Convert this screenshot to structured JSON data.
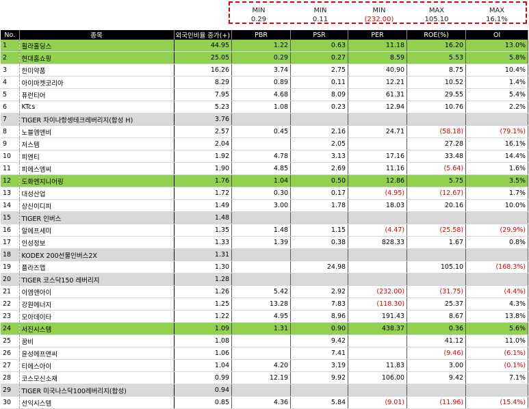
{
  "minmax": [
    {
      "label": "MIN",
      "value": "0.29",
      "neg": false
    },
    {
      "label": "MIN",
      "value": "0.11",
      "neg": false
    },
    {
      "label": "MIN",
      "value": "(232.00)",
      "neg": true
    },
    {
      "label": "MAX",
      "value": "105.10",
      "neg": false
    },
    {
      "label": "MAX",
      "value": "16.1%",
      "neg": false
    }
  ],
  "headers": [
    "No.",
    "종목",
    "외국인비율 증가(+)",
    "PBR",
    "PSR",
    "PER",
    "ROE(%)",
    "OI"
  ],
  "rows": [
    {
      "no": "1",
      "name": "휠라홀딩스",
      "foreign": "44.95",
      "pbr": "1.22",
      "psr": "0.63",
      "per": "11.18",
      "roe": "16.20",
      "oi": "13.0%",
      "style": "green"
    },
    {
      "no": "2",
      "name": "현대홈쇼핑",
      "foreign": "25.05",
      "pbr": "0.29",
      "psr": "0.27",
      "per": "8.59",
      "roe": "5.53",
      "oi": "5.8%",
      "style": "green"
    },
    {
      "no": "3",
      "name": "한미약품",
      "foreign": "16.26",
      "pbr": "3.74",
      "psr": "2.75",
      "per": "40.90",
      "roe": "8.75",
      "oi": "10.4%",
      "style": ""
    },
    {
      "no": "4",
      "name": "아이마켓코리아",
      "foreign": "8.29",
      "pbr": "0.89",
      "psr": "0.11",
      "per": "12.21",
      "roe": "10.52",
      "oi": "1.4%",
      "style": ""
    },
    {
      "no": "5",
      "name": "퓨런티어",
      "foreign": "7.95",
      "pbr": "4.68",
      "psr": "8.09",
      "per": "61.31",
      "roe": "29.55",
      "oi": "5.4%",
      "style": ""
    },
    {
      "no": "6",
      "name": "KTcs",
      "foreign": "5.23",
      "pbr": "1.08",
      "psr": "0.23",
      "per": "12.94",
      "roe": "10.76",
      "oi": "2.2%",
      "style": ""
    },
    {
      "no": "7",
      "name": "TIGER 차이나항셍테크레버리지(합성 H)",
      "foreign": "3.76",
      "pbr": "",
      "psr": "",
      "per": "",
      "roe": "",
      "oi": "",
      "style": "gray"
    },
    {
      "no": "8",
      "name": "노블엠앤비",
      "foreign": "2.57",
      "pbr": "0.45",
      "psr": "2.16",
      "per": "24.71",
      "roe": "(58.18)",
      "oi": "(79.1%)",
      "style": ""
    },
    {
      "no": "9",
      "name": "저스템",
      "foreign": "2.04",
      "pbr": "",
      "psr": "2.05",
      "per": "",
      "roe": "27.28",
      "oi": "16.1%",
      "style": ""
    },
    {
      "no": "10",
      "name": "피엔티",
      "foreign": "1.92",
      "pbr": "4.78",
      "psr": "3.13",
      "per": "17.16",
      "roe": "33.48",
      "oi": "14.4%",
      "style": ""
    },
    {
      "no": "11",
      "name": "피에스엠씨",
      "foreign": "1.90",
      "pbr": "4.85",
      "psr": "2.69",
      "per": "11.16",
      "roe": "(5.64)",
      "oi": "1.6%",
      "style": ""
    },
    {
      "no": "12",
      "name": "도화엔지니어링",
      "foreign": "1.76",
      "pbr": "1.04",
      "psr": "0.50",
      "per": "12.86",
      "roe": "5.75",
      "oi": "3.5%",
      "style": "green"
    },
    {
      "no": "13",
      "name": "대성산업",
      "foreign": "1.72",
      "pbr": "0.30",
      "psr": "0.17",
      "per": "(4.95)",
      "roe": "(12.67)",
      "oi": "1.7%",
      "style": ""
    },
    {
      "no": "14",
      "name": "상신이디피",
      "foreign": "1.49",
      "pbr": "3.00",
      "psr": "1.78",
      "per": "18.03",
      "roe": "20.16",
      "oi": "10.0%",
      "style": ""
    },
    {
      "no": "15",
      "name": "TIGER 인버스",
      "foreign": "1.48",
      "pbr": "",
      "psr": "",
      "per": "",
      "roe": "",
      "oi": "",
      "style": "gray"
    },
    {
      "no": "16",
      "name": "알에프세미",
      "foreign": "1.35",
      "pbr": "1.48",
      "psr": "1.15",
      "per": "(4.47)",
      "roe": "(25.58)",
      "oi": "(29.9%)",
      "style": ""
    },
    {
      "no": "17",
      "name": "인성정보",
      "foreign": "1.33",
      "pbr": "1.39",
      "psr": "0.38",
      "per": "828.33",
      "roe": "1.67",
      "oi": "0.8%",
      "style": ""
    },
    {
      "no": "18",
      "name": "KODEX 200선물인버스2X",
      "foreign": "1.31",
      "pbr": "",
      "psr": "",
      "per": "",
      "roe": "",
      "oi": "",
      "style": "gray"
    },
    {
      "no": "19",
      "name": "플라즈맵",
      "foreign": "1.30",
      "pbr": "",
      "psr": "24.98",
      "per": "",
      "roe": "105.10",
      "oi": "(168.3%)",
      "style": ""
    },
    {
      "no": "20",
      "name": "TIGER 코스닥150 레버리지",
      "foreign": "1.28",
      "pbr": "",
      "psr": "",
      "per": "",
      "roe": "",
      "oi": "",
      "style": "gray"
    },
    {
      "no": "21",
      "name": "이엠앤아이",
      "foreign": "1.26",
      "pbr": "5.42",
      "psr": "2.92",
      "per": "(232.00)",
      "roe": "(31.75)",
      "oi": "(4.4%)",
      "style": ""
    },
    {
      "no": "22",
      "name": "강원에너지",
      "foreign": "1.25",
      "pbr": "13.28",
      "psr": "7.83",
      "per": "(118.30)",
      "roe": "25.37",
      "oi": "4.3%",
      "style": ""
    },
    {
      "no": "23",
      "name": "모아데이타",
      "foreign": "1.22",
      "pbr": "4.95",
      "psr": "8.96",
      "per": "191.43",
      "roe": "8.67",
      "oi": "13.8%",
      "style": ""
    },
    {
      "no": "24",
      "name": "서진시스템",
      "foreign": "1.09",
      "pbr": "1.31",
      "psr": "0.90",
      "per": "438.37",
      "roe": "0.36",
      "oi": "5.6%",
      "style": "green"
    },
    {
      "no": "25",
      "name": "꿈비",
      "foreign": "1.08",
      "pbr": "",
      "psr": "9.42",
      "per": "",
      "roe": "41.12",
      "oi": "11.0%",
      "style": ""
    },
    {
      "no": "26",
      "name": "윤성에프앤씨",
      "foreign": "1.06",
      "pbr": "",
      "psr": "7.41",
      "per": "",
      "roe": "(9.46)",
      "oi": "(6.1%)",
      "style": ""
    },
    {
      "no": "27",
      "name": "티에스아이",
      "foreign": "1.04",
      "pbr": "4.20",
      "psr": "3.19",
      "per": "11.83",
      "roe": "3.00",
      "oi": "(0.1%)",
      "style": ""
    },
    {
      "no": "28",
      "name": "코스모신소재",
      "foreign": "0.99",
      "pbr": "12.19",
      "psr": "9.92",
      "per": "106.00",
      "roe": "9.42",
      "oi": "7.1%",
      "style": ""
    },
    {
      "no": "29",
      "name": "TIGER 미국나스닥100레버리지(합성)",
      "foreign": "0.94",
      "pbr": "",
      "psr": "",
      "per": "",
      "roe": "",
      "oi": "",
      "style": "gray"
    },
    {
      "no": "30",
      "name": "선익시스템",
      "foreign": "0.85",
      "pbr": "4.36",
      "psr": "5.84",
      "per": "(9.01)",
      "roe": "(11.96)",
      "oi": "(15.4%)",
      "style": ""
    }
  ]
}
